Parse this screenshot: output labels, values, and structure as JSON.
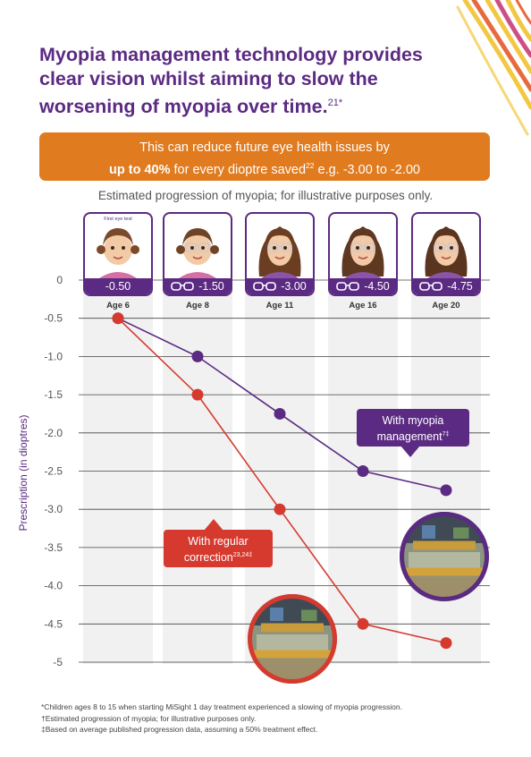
{
  "headline": {
    "line1": "Myopia management technology provides",
    "line2": "clear vision whilst aiming to slow the",
    "line3": "worsening of myopia over time.",
    "sup": "21*"
  },
  "banner": {
    "line1": "This can reduce future eye health issues by",
    "bold": "up to 40%",
    "mid": " for every dioptre saved",
    "sup": "22",
    "tail": " e.g. -3.00 to -2.00"
  },
  "colors": {
    "purple": "#5b2a82",
    "red": "#d63a2f",
    "orange": "#e07b1f",
    "grid": "#444444",
    "band": "#f1f1f1"
  },
  "cards": [
    {
      "value": "-0.50",
      "age": "Age 6",
      "glasses": false,
      "note": "First eye test"
    },
    {
      "value": "-1.50",
      "age": "Age 8",
      "glasses": true,
      "note": ""
    },
    {
      "value": "-3.00",
      "age": "Age 11",
      "glasses": true,
      "note": ""
    },
    {
      "value": "-4.50",
      "age": "Age 16",
      "glasses": true,
      "note": ""
    },
    {
      "value": "-4.75",
      "age": "Age 20",
      "glasses": true,
      "note": ""
    }
  ],
  "callouts": {
    "management": {
      "line1": "With myopia",
      "line2": "management",
      "sup": "7‡"
    },
    "regular": {
      "line1": "With regular",
      "line2": "correction",
      "sup": "23,24‡"
    }
  },
  "chart_data": {
    "type": "line",
    "title": "Estimated progression of myopia; for illustrative purposes only.",
    "ylabel": "Prescription (in dioptres)",
    "xlabel": "",
    "categories": [
      "Age 6",
      "Age 8",
      "Age 11",
      "Age 16",
      "Age 20"
    ],
    "y_ticks": [
      0,
      -0.5,
      -1.0,
      -1.5,
      -2.0,
      -2.5,
      -3.0,
      -3.5,
      -4.0,
      -4.5,
      -5
    ],
    "y_tick_labels": [
      "0",
      "-0.5",
      "-1.0",
      "-1.5",
      "-2.0",
      "-2.5",
      "-3.0",
      "-3.5",
      "-4.0",
      "-4.5",
      "-5"
    ],
    "ylim": [
      -5,
      0
    ],
    "grid": true,
    "series": [
      {
        "name": "With myopia management",
        "color": "#5b2a82",
        "values": [
          -0.5,
          -1.0,
          -1.75,
          -2.5,
          -2.75
        ]
      },
      {
        "name": "With regular correction",
        "color": "#d63a2f",
        "values": [
          -0.5,
          -1.5,
          -3.0,
          -4.5,
          -4.75
        ]
      }
    ]
  },
  "footnotes": [
    "*Children ages 8 to 15 when starting MiSight 1 day treatment experienced a slowing of myopia progression.",
    "†Estimated progression of myopia; for illustrative purposes only.",
    "‡Based on average published progression data, assuming a 50% treatment effect."
  ]
}
